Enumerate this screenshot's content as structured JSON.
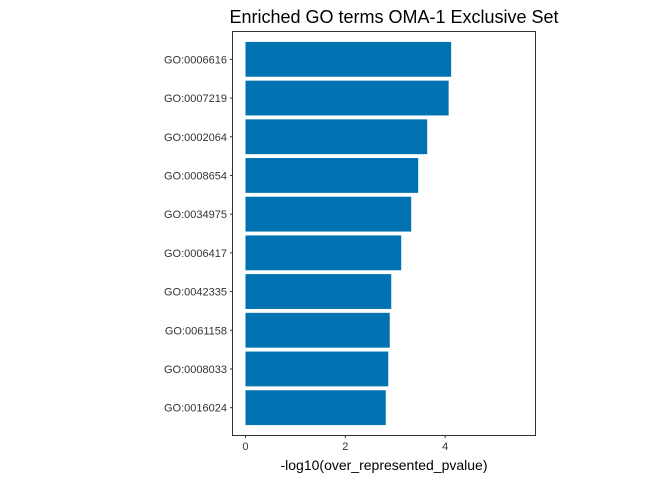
{
  "chart_data": {
    "type": "bar",
    "orientation": "horizontal",
    "title": "Enriched GO terms OMA-1 Exclusive Set",
    "xlabel": "-log10(over_represented_pvalue)",
    "ylabel": "",
    "categories": [
      "GO:0006616",
      "GO:0007219",
      "GO:0002064",
      "GO:0008654",
      "GO:0034975",
      "GO:0006417",
      "GO:0042335",
      "GO:0061158",
      "GO:0008033",
      "GO:0016024"
    ],
    "values": [
      4.12,
      4.07,
      3.64,
      3.46,
      3.32,
      3.12,
      2.92,
      2.89,
      2.86,
      2.81
    ],
    "xlim": [
      -0.25,
      5.8
    ],
    "xticks": [
      0,
      2,
      4
    ],
    "grid": false,
    "legend": "none",
    "bar_color": "#0072B2"
  }
}
